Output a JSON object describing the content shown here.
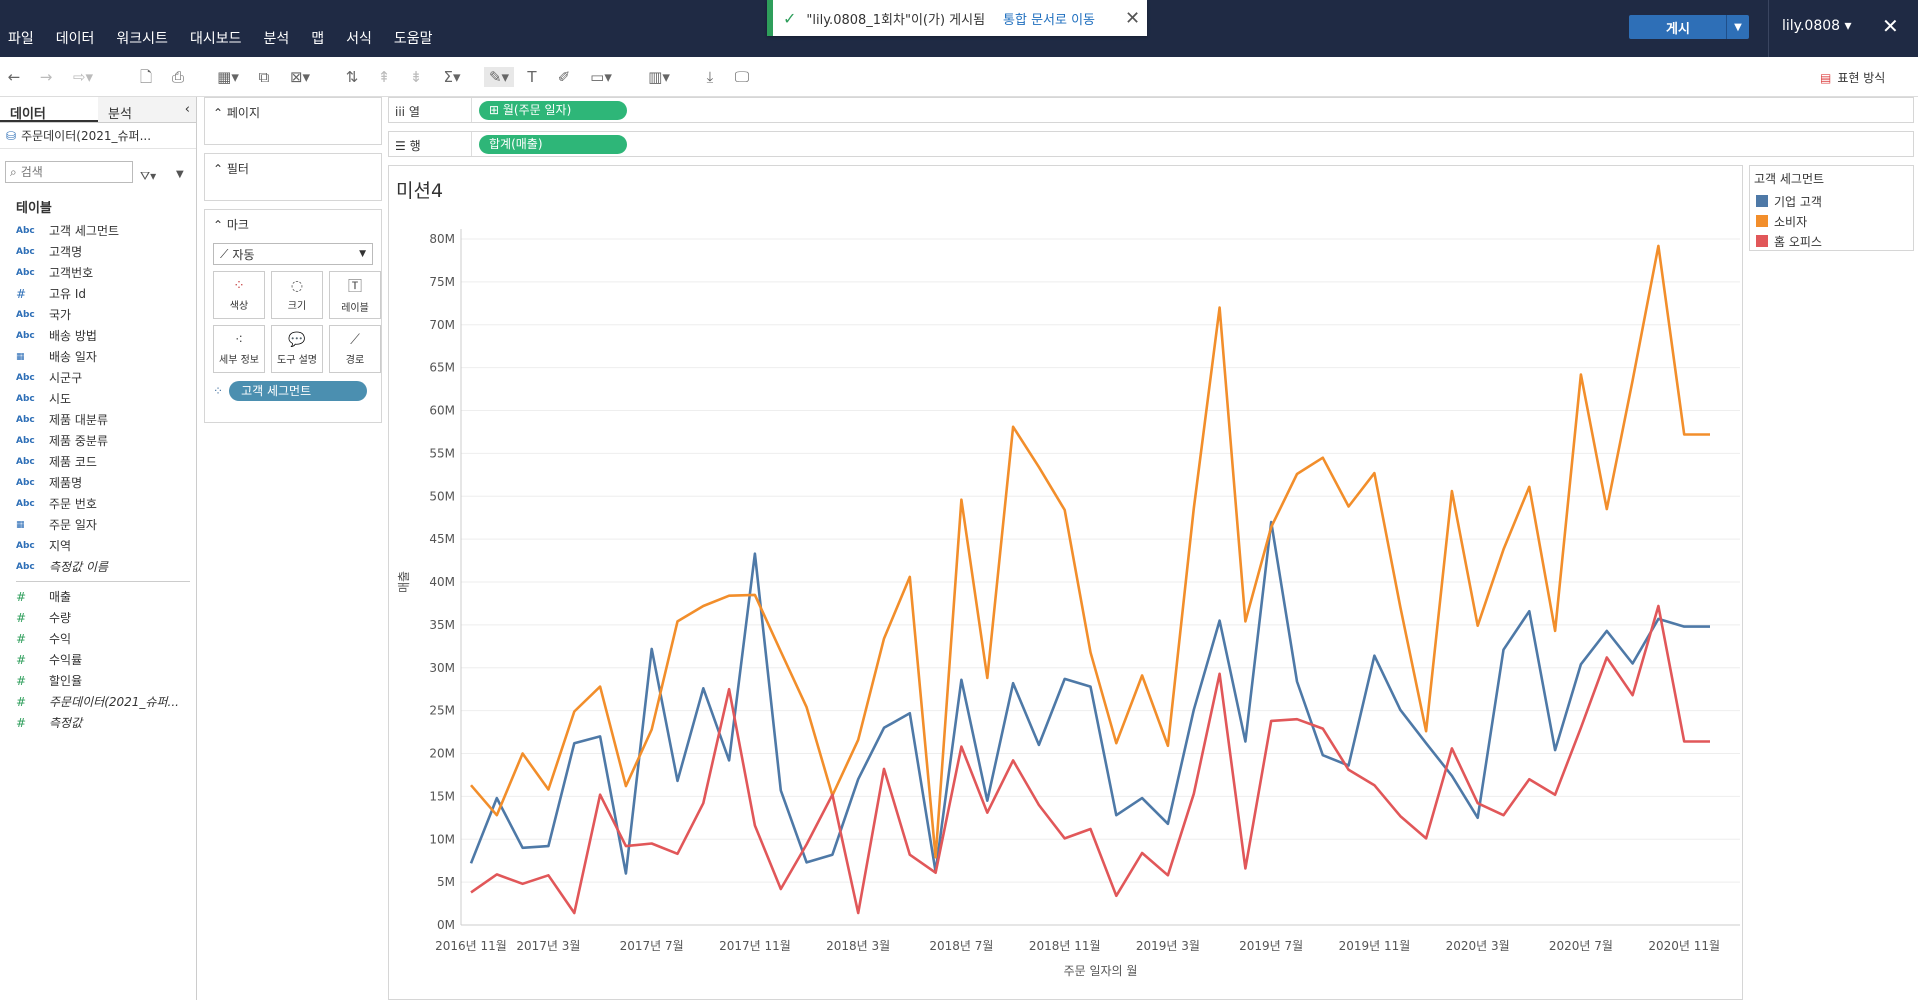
{
  "topbar": {
    "menu": [
      "파일",
      "데이터",
      "워크시트",
      "대시보드",
      "분석",
      "맵",
      "서식",
      "도움말"
    ],
    "notification": {
      "text": "\"lily.0808_1회차\"이(가) 게시됨",
      "link": "통합 문서로 이동"
    },
    "publish_label": "게시",
    "user": "lily.0808 ▾"
  },
  "toolbar": {
    "show_me": "표현 방식"
  },
  "left_pane": {
    "tabs": [
      "데이터",
      "분석"
    ],
    "datasource": "주문데이터(2021_슈퍼...",
    "search_placeholder": "검색",
    "tables_heading": "테이블",
    "dimensions": [
      {
        "icon": "Abc",
        "label": "고객 세그먼트"
      },
      {
        "icon": "Abc",
        "label": "고객명"
      },
      {
        "icon": "Abc",
        "label": "고객번호"
      },
      {
        "icon": "#",
        "label": "고유 Id"
      },
      {
        "icon": "Abc",
        "label": "국가"
      },
      {
        "icon": "Abc",
        "label": "배송 방법"
      },
      {
        "icon": "cal",
        "label": "배송 일자"
      },
      {
        "icon": "Abc",
        "label": "시군구"
      },
      {
        "icon": "Abc",
        "label": "시도"
      },
      {
        "icon": "Abc",
        "label": "제품 대분류"
      },
      {
        "icon": "Abc",
        "label": "제품 중분류"
      },
      {
        "icon": "Abc",
        "label": "제품 코드"
      },
      {
        "icon": "Abc",
        "label": "제품명"
      },
      {
        "icon": "Abc",
        "label": "주문 번호"
      },
      {
        "icon": "cal",
        "label": "주문 일자"
      },
      {
        "icon": "Abc",
        "label": "지역"
      },
      {
        "icon": "Abc",
        "label": "측정값 이름",
        "italic": true
      }
    ],
    "measures": [
      {
        "label": "매출"
      },
      {
        "label": "수량"
      },
      {
        "label": "수익"
      },
      {
        "label": "수익률"
      },
      {
        "label": "할인율"
      },
      {
        "label": "주문데이터(2021_슈퍼...",
        "italic": true
      },
      {
        "label": "측정값",
        "italic": true
      }
    ]
  },
  "shelves": {
    "pages": "페이지",
    "filters": "필터",
    "marks": "마크",
    "marks_type": "자동",
    "mark_buttons": [
      "색상",
      "크기",
      "레이블",
      "세부 정보",
      "도구 설명",
      "경로"
    ],
    "color_pill": "고객 세그먼트"
  },
  "columns_shelf": {
    "label": "열",
    "pill": "⊞ 월(주문 일자)"
  },
  "rows_shelf": {
    "label": "행",
    "pill": "합계(매출)"
  },
  "sheet_title": "미션4",
  "legend": {
    "title": "고객 세그먼트",
    "items": [
      {
        "label": "기업 고객",
        "color": "#4e79a7"
      },
      {
        "label": "소비자",
        "color": "#f28e2b"
      },
      {
        "label": "홈 오피스",
        "color": "#e15759"
      }
    ]
  },
  "chart_data": {
    "type": "line",
    "xlabel": "주문 일자의 월",
    "ylabel": "매출",
    "ylim": [
      0,
      80000000
    ],
    "y_ticks": [
      "0M",
      "5M",
      "10M",
      "15M",
      "20M",
      "25M",
      "30M",
      "35M",
      "40M",
      "45M",
      "50M",
      "55M",
      "60M",
      "65M",
      "70M",
      "75M",
      "80M"
    ],
    "x_tick_labels": [
      "2016년 11월",
      "2017년 3월",
      "2017년 7월",
      "2017년 11월",
      "2018년 3월",
      "2018년 7월",
      "2018년 11월",
      "2019년 3월",
      "2019년 7월",
      "2019년 11월",
      "2020년 3월",
      "2020년 7월",
      "2020년 11월"
    ],
    "x_tick_index": [
      0,
      3,
      7,
      11,
      15,
      19,
      23,
      27,
      31,
      35,
      39,
      43,
      47
    ],
    "x_start": "2016년 11월",
    "x_count": 49,
    "grid": true,
    "series": [
      {
        "name": "기업 고객",
        "color": "#4e79a7",
        "values": [
          7.2,
          14.8,
          9.0,
          9.2,
          21.2,
          22.0,
          6.0,
          32.2,
          16.8,
          27.6,
          19.2,
          43.3,
          15.7,
          7.3,
          8.2,
          17.0,
          23.0,
          24.7,
          6.2,
          28.6,
          14.5,
          28.2,
          21.0,
          28.7,
          27.8,
          12.8,
          14.8,
          11.8,
          25.1,
          35.5,
          21.4,
          47.0,
          28.4,
          19.8,
          18.6,
          31.4,
          25.1,
          21.2,
          17.4,
          12.5,
          32.1,
          36.6,
          20.4,
          30.4,
          34.3,
          30.5,
          35.7,
          34.8,
          34.8
        ]
      },
      {
        "name": "소비자",
        "color": "#f28e2b",
        "values": [
          16.3,
          12.8,
          20.0,
          15.8,
          24.9,
          27.8,
          16.2,
          22.8,
          35.4,
          37.2,
          38.4,
          38.5,
          31.9,
          25.4,
          15.1,
          21.6,
          33.4,
          40.6,
          7.9,
          49.6,
          28.8,
          58.1,
          53.4,
          48.4,
          31.8,
          21.2,
          29.1,
          20.9,
          48.6,
          72.0,
          35.4,
          46.4,
          52.6,
          54.5,
          48.8,
          52.7,
          37.1,
          22.6,
          50.6,
          34.9,
          43.8,
          51.1,
          34.3,
          64.2,
          48.5,
          63.5,
          79.2,
          57.2,
          57.2
        ]
      },
      {
        "name": "홈 오피스",
        "color": "#e15759",
        "values": [
          3.8,
          5.9,
          4.8,
          5.8,
          1.4,
          15.2,
          9.2,
          9.5,
          8.3,
          14.2,
          27.5,
          11.6,
          4.2,
          9.4,
          15.2,
          1.4,
          18.2,
          8.2,
          6.1,
          20.8,
          13.1,
          19.2,
          14.0,
          10.1,
          11.2,
          3.4,
          8.4,
          5.8,
          15.3,
          29.3,
          6.6,
          23.8,
          24.0,
          22.9,
          18.1,
          16.3,
          12.7,
          10.1,
          20.6,
          14.2,
          12.8,
          17.0,
          15.2,
          23.0,
          31.2,
          26.8,
          37.2,
          21.4,
          21.4
        ]
      }
    ]
  }
}
